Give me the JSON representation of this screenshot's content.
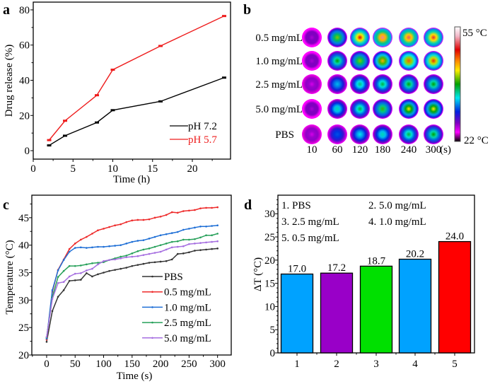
{
  "chart_data": [
    {
      "panel": "a",
      "type": "line",
      "xlabel": "Time (h)",
      "ylabel": "Drug release (%)",
      "xlim": [
        0,
        24.8
      ],
      "ylim": [
        -4.8,
        84.4
      ],
      "xticks": [
        0,
        5,
        10,
        15,
        20
      ],
      "yticks": [
        0,
        20,
        40,
        60,
        80
      ],
      "legend_position": "bottom-right",
      "series": [
        {
          "name": "pH 7.2",
          "color": "#000000",
          "x": [
            2,
            4,
            8,
            10,
            16,
            24
          ],
          "y": [
            3,
            8.5,
            16,
            23,
            28,
            41.5
          ]
        },
        {
          "name": "pH 5.7",
          "color": "#ee1c1c",
          "x": [
            2,
            4,
            8,
            10,
            16,
            24
          ],
          "y": [
            6,
            17,
            31.5,
            46,
            59.5,
            76.5
          ]
        }
      ]
    },
    {
      "panel": "b",
      "type": "heatmap",
      "title": "",
      "row_labels": [
        "0.5 mg/mL",
        "1.0 mg/mL",
        "2.5 mg/mL",
        "5.0 mg/mL",
        "PBS"
      ],
      "col_labels": [
        "10",
        "60",
        "120",
        "180",
        "240",
        "300"
      ],
      "col_unit": "(s)",
      "colorbar": {
        "max_label": "55 °C",
        "min_label": "22 °C",
        "max": 55,
        "min": 22
      },
      "approx_peak_temperature_C": [
        [
          26,
          40,
          48,
          51,
          50,
          49
        ],
        [
          26,
          38,
          40,
          44,
          46,
          47
        ],
        [
          25,
          33,
          36,
          37,
          38,
          38
        ],
        [
          26,
          35,
          37,
          39,
          42,
          42
        ],
        [
          25,
          31,
          34,
          35,
          37,
          38
        ]
      ]
    },
    {
      "panel": "c",
      "type": "line",
      "xlabel": "Time (s)",
      "ylabel": "Temperature (°C)",
      "xlim": [
        -26,
        324
      ],
      "ylim": [
        20,
        49.1
      ],
      "xticks": [
        0,
        50,
        100,
        150,
        200,
        250,
        300
      ],
      "yticks": [
        20,
        25,
        30,
        35,
        40,
        45
      ],
      "legend_position": "bottom-right",
      "x": [
        0,
        10,
        20,
        30,
        40,
        50,
        60,
        70,
        80,
        90,
        100,
        110,
        120,
        130,
        140,
        150,
        160,
        170,
        180,
        190,
        200,
        210,
        220,
        230,
        240,
        250,
        260,
        270,
        280,
        290,
        300
      ],
      "series": [
        {
          "name": "PBS",
          "color": "#333333",
          "values": [
            22.4,
            28,
            30.6,
            31.8,
            33.5,
            33.6,
            33.7,
            34.9,
            34.3,
            34.7,
            35,
            35.3,
            35.5,
            35.7,
            35.9,
            36.2,
            36.4,
            36.6,
            36.8,
            36.9,
            37,
            37.1,
            37.4,
            38.4,
            38.5,
            38.7,
            39,
            39.1,
            39.2,
            39.3,
            39.4
          ]
        },
        {
          "name": "0.5 mg/mL",
          "color": "#ee2b2b",
          "values": [
            22.8,
            31.5,
            35.5,
            37.4,
            39.3,
            40.3,
            41,
            41.5,
            42.1,
            42.7,
            43,
            43.3,
            43.6,
            43.8,
            44.2,
            44.5,
            44.6,
            44.6,
            44.7,
            45,
            45.2,
            45.5,
            46,
            45.9,
            46.2,
            46.3,
            46.4,
            46.7,
            46.8,
            46.8,
            46.9
          ]
        },
        {
          "name": "1.0 mg/mL",
          "color": "#1f6fd6",
          "values": [
            23,
            31.8,
            35.4,
            37.3,
            38.8,
            39.5,
            39.6,
            39.5,
            39.6,
            39.7,
            39.7,
            39.8,
            39.9,
            40,
            40.3,
            40.6,
            40.8,
            40.9,
            41.2,
            41.5,
            41.8,
            42,
            42.2,
            42.4,
            42.8,
            43,
            43.2,
            43.4,
            43.4,
            43.5,
            43.6
          ]
        },
        {
          "name": "2.5 mg/mL",
          "color": "#27a05a",
          "values": [
            23.2,
            30.5,
            34.2,
            35.3,
            36.2,
            36.2,
            36.3,
            36.5,
            36.7,
            36.8,
            36.9,
            37.3,
            37.6,
            37.9,
            38.1,
            38.5,
            38.9,
            39.2,
            39.4,
            39.7,
            40,
            40.3,
            40.6,
            40.7,
            41,
            41,
            41.1,
            41.4,
            41.8,
            41.8,
            42.1
          ]
        },
        {
          "name": "5.0 mg/mL",
          "color": "#a66fe0",
          "values": [
            23.3,
            30.2,
            33.1,
            33.3,
            34.3,
            34.8,
            34.9,
            35.4,
            35.7,
            36.5,
            37.1,
            37.3,
            37.4,
            37.6,
            37.8,
            37.9,
            38,
            38.2,
            38.4,
            38.6,
            38.8,
            39.2,
            39.6,
            39.7,
            39.8,
            40.2,
            40.3,
            40.4,
            40.5,
            40.6,
            40.7
          ]
        }
      ]
    },
    {
      "panel": "d",
      "type": "bar",
      "xlabel": "",
      "ylabel": "ΔT (°C)",
      "ylim": [
        0,
        34
      ],
      "yticks": [
        0,
        5,
        10,
        15,
        20,
        25,
        30
      ],
      "categories": [
        "1",
        "2",
        "3",
        "4",
        "5"
      ],
      "values": [
        17.0,
        17.2,
        18.7,
        20.2,
        24.0
      ],
      "value_labels": [
        "17.0",
        "17.2",
        "18.7",
        "20.2",
        "24.0"
      ],
      "colors": [
        "#00a2ff",
        "#9900c8",
        "#00e000",
        "#00a2ff",
        "#ff0000"
      ],
      "annotation": [
        "1. PBS",
        "2. 5.0 mg/mL",
        "3. 2.5 mg/mL",
        "4. 1.0 mg/mL",
        "5. 0.5 mg/mL"
      ]
    }
  ],
  "panel_labels": [
    "a",
    "b",
    "c",
    "d"
  ]
}
